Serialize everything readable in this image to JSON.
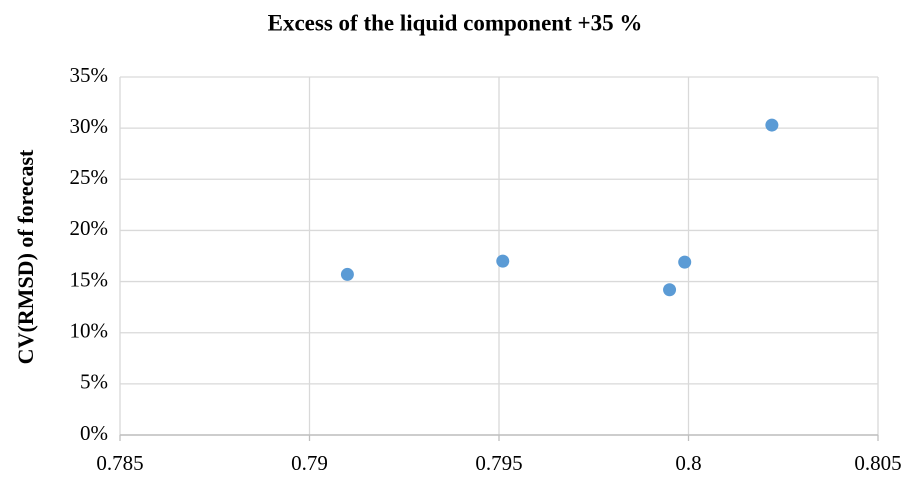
{
  "chart_data": {
    "type": "scatter",
    "title": "Excess of the liquid component +35 %",
    "y_label": "CV(RMSD) of forecast",
    "x": [
      0.791,
      0.7951,
      0.7995,
      0.7999,
      0.8022
    ],
    "values": [
      15.7,
      17.0,
      14.2,
      16.9,
      30.3
    ],
    "color": "#5b9bd5",
    "xlim": [
      0.785,
      0.805
    ],
    "xticks": [
      0.785,
      0.79,
      0.795,
      0.8,
      0.805
    ],
    "ylim": [
      0,
      35
    ],
    "yticks": [
      {
        "value": 0,
        "label": "0%"
      },
      {
        "value": 5,
        "label": "5%"
      },
      {
        "value": 10,
        "label": "10%"
      },
      {
        "value": 15,
        "label": "15%"
      },
      {
        "value": 20,
        "label": "20%"
      },
      {
        "value": 25,
        "label": "25%"
      },
      {
        "value": 30,
        "label": "30%"
      },
      {
        "value": 35,
        "label": "35%"
      }
    ],
    "grid": true
  }
}
